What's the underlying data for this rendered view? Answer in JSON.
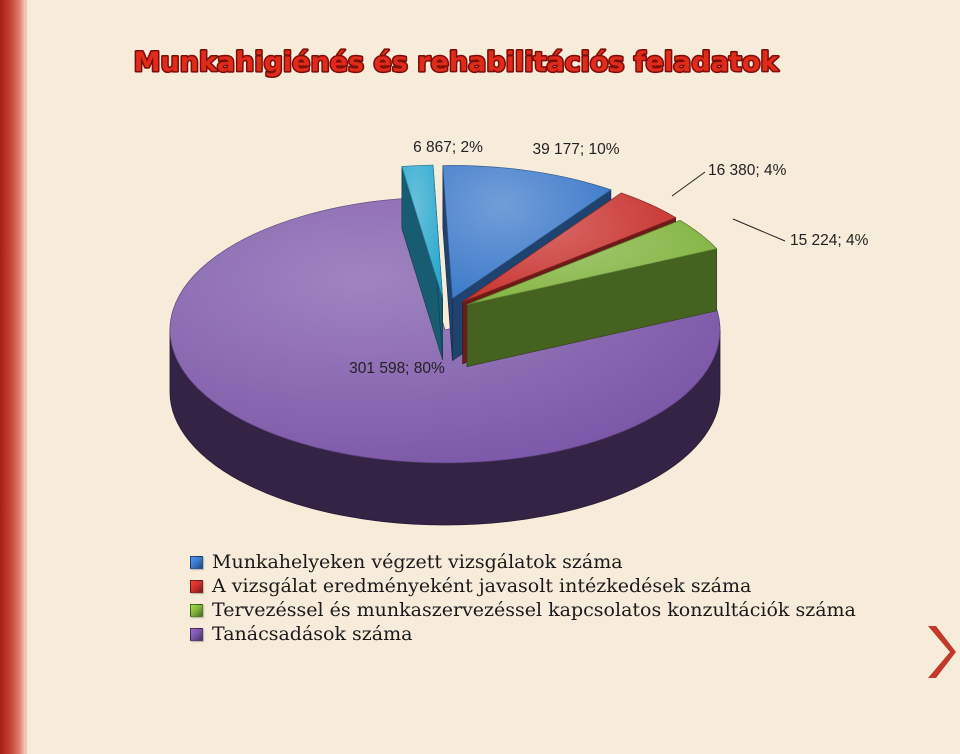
{
  "title": "Munkahigiénés és rehabilitációs feladatok",
  "colors": {
    "title_fill": "#e02a1a",
    "title_stroke": "#7a0d08",
    "left_band": "#c6453a",
    "arrow": "#c0392b"
  },
  "nav": {
    "next_icon": "chevron-right-icon"
  },
  "chart_data": {
    "type": "pie",
    "style": "3d-exploded",
    "title": "",
    "legend_position": "bottom-left",
    "slices": [
      {
        "name": "Munkahelyeken végzett vizsgálatok száma",
        "value": 39177,
        "percent": 10,
        "label": "39 177; 10%",
        "color": "#3a78c9"
      },
      {
        "name": "A vizsgálat eredményeként javasolt intézkedések száma",
        "value": 16380,
        "percent": 4,
        "label": "16 380; 4%",
        "color": "#c8302c"
      },
      {
        "name": "Tervezéssel és munkaszervezéssel kapcsolatos konzultációk száma",
        "value": 15224,
        "percent": 4,
        "label": "15 224; 4%",
        "color": "#7fb33c"
      },
      {
        "name": "Tanácsadások száma",
        "value": 301598,
        "percent": 80,
        "label": "301 598; 80%",
        "color": "#7a55a7"
      },
      {
        "name": "",
        "value": 6867,
        "percent": 2,
        "label": "6 867; 2%",
        "color": "#2ba8cf"
      }
    ]
  }
}
